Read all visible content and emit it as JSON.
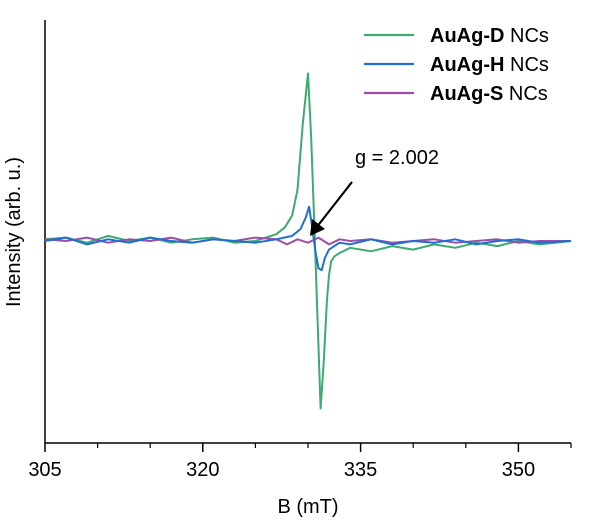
{
  "chart_data": {
    "type": "line",
    "title": "",
    "xlabel": "B (mT)",
    "ylabel": "Intensity (arb. u.)",
    "xlim": [
      305,
      355
    ],
    "ylim": [
      -1.0,
      1.0
    ],
    "xticks": [
      305,
      320,
      335,
      350
    ],
    "xticks_minor": [
      310,
      315,
      325,
      330,
      340,
      345,
      355
    ],
    "yticks": [],
    "grid": false,
    "legend_position": "top-right",
    "series": [
      {
        "name_bold": "AuAg-D",
        "name_rest": " NCs",
        "color": "#3daa72",
        "x": [
          305,
          307,
          309,
          311,
          313,
          315,
          317,
          319,
          321,
          323,
          325,
          326,
          327,
          327.8,
          328.5,
          329.0,
          329.5,
          330.0,
          330.3,
          330.6,
          330.9,
          331.2,
          331.5,
          331.8,
          332.0,
          332.2,
          332.5,
          333,
          334,
          336,
          338,
          340,
          342,
          344,
          346,
          348,
          350,
          352,
          355
        ],
        "y": [
          0.01,
          0.02,
          -0.01,
          0.03,
          0.0,
          0.02,
          -0.01,
          0.01,
          0.02,
          -0.01,
          0.0,
          0.02,
          0.04,
          0.08,
          0.15,
          0.3,
          0.68,
          0.98,
          0.6,
          0.1,
          -0.45,
          -0.98,
          -0.7,
          -0.35,
          -0.2,
          -0.12,
          -0.09,
          -0.07,
          -0.04,
          -0.06,
          -0.03,
          -0.05,
          -0.02,
          -0.04,
          -0.01,
          -0.03,
          0.0,
          -0.02,
          0.0
        ]
      },
      {
        "name_bold": "AuAg-H",
        "name_rest": " NCs",
        "color": "#1f6fd0",
        "x": [
          305,
          307,
          309,
          311,
          313,
          315,
          317,
          319,
          321,
          323,
          325,
          327,
          328.5,
          329.3,
          329.8,
          330.1,
          330.4,
          330.7,
          331.0,
          331.3,
          331.6,
          332.0,
          332.5,
          333,
          334,
          336,
          338,
          340,
          342,
          344,
          346,
          348,
          350,
          352,
          355
        ],
        "y": [
          0.0,
          0.02,
          -0.02,
          0.01,
          -0.01,
          0.02,
          0.0,
          -0.01,
          0.01,
          0.0,
          -0.01,
          0.01,
          0.03,
          0.07,
          0.14,
          0.2,
          0.08,
          -0.06,
          -0.16,
          -0.17,
          -0.1,
          -0.05,
          -0.03,
          -0.01,
          -0.02,
          0.01,
          -0.02,
          0.0,
          -0.01,
          0.01,
          -0.02,
          0.0,
          0.01,
          -0.01,
          0.0
        ]
      },
      {
        "name_bold": "AuAg-S",
        "name_rest": " NCs",
        "color": "#9b4fa9",
        "x": [
          305,
          307,
          309,
          311,
          313,
          315,
          317,
          319,
          321,
          323,
          325,
          327,
          328,
          329,
          330,
          331,
          332,
          333,
          334,
          336,
          338,
          340,
          342,
          344,
          346,
          348,
          350,
          352,
          355
        ],
        "y": [
          0.01,
          0.0,
          0.02,
          -0.01,
          0.01,
          0.0,
          0.02,
          -0.01,
          0.01,
          0.0,
          0.02,
          0.01,
          -0.02,
          0.01,
          -0.01,
          0.02,
          -0.02,
          0.01,
          0.0,
          0.01,
          -0.01,
          0.0,
          0.01,
          -0.01,
          0.0,
          0.01,
          -0.01,
          0.0,
          0.0
        ]
      }
    ],
    "annotations": [
      {
        "text": "g = 2.002",
        "arrow_to_x": 331.8,
        "arrow_to_y": 0.05
      }
    ]
  }
}
